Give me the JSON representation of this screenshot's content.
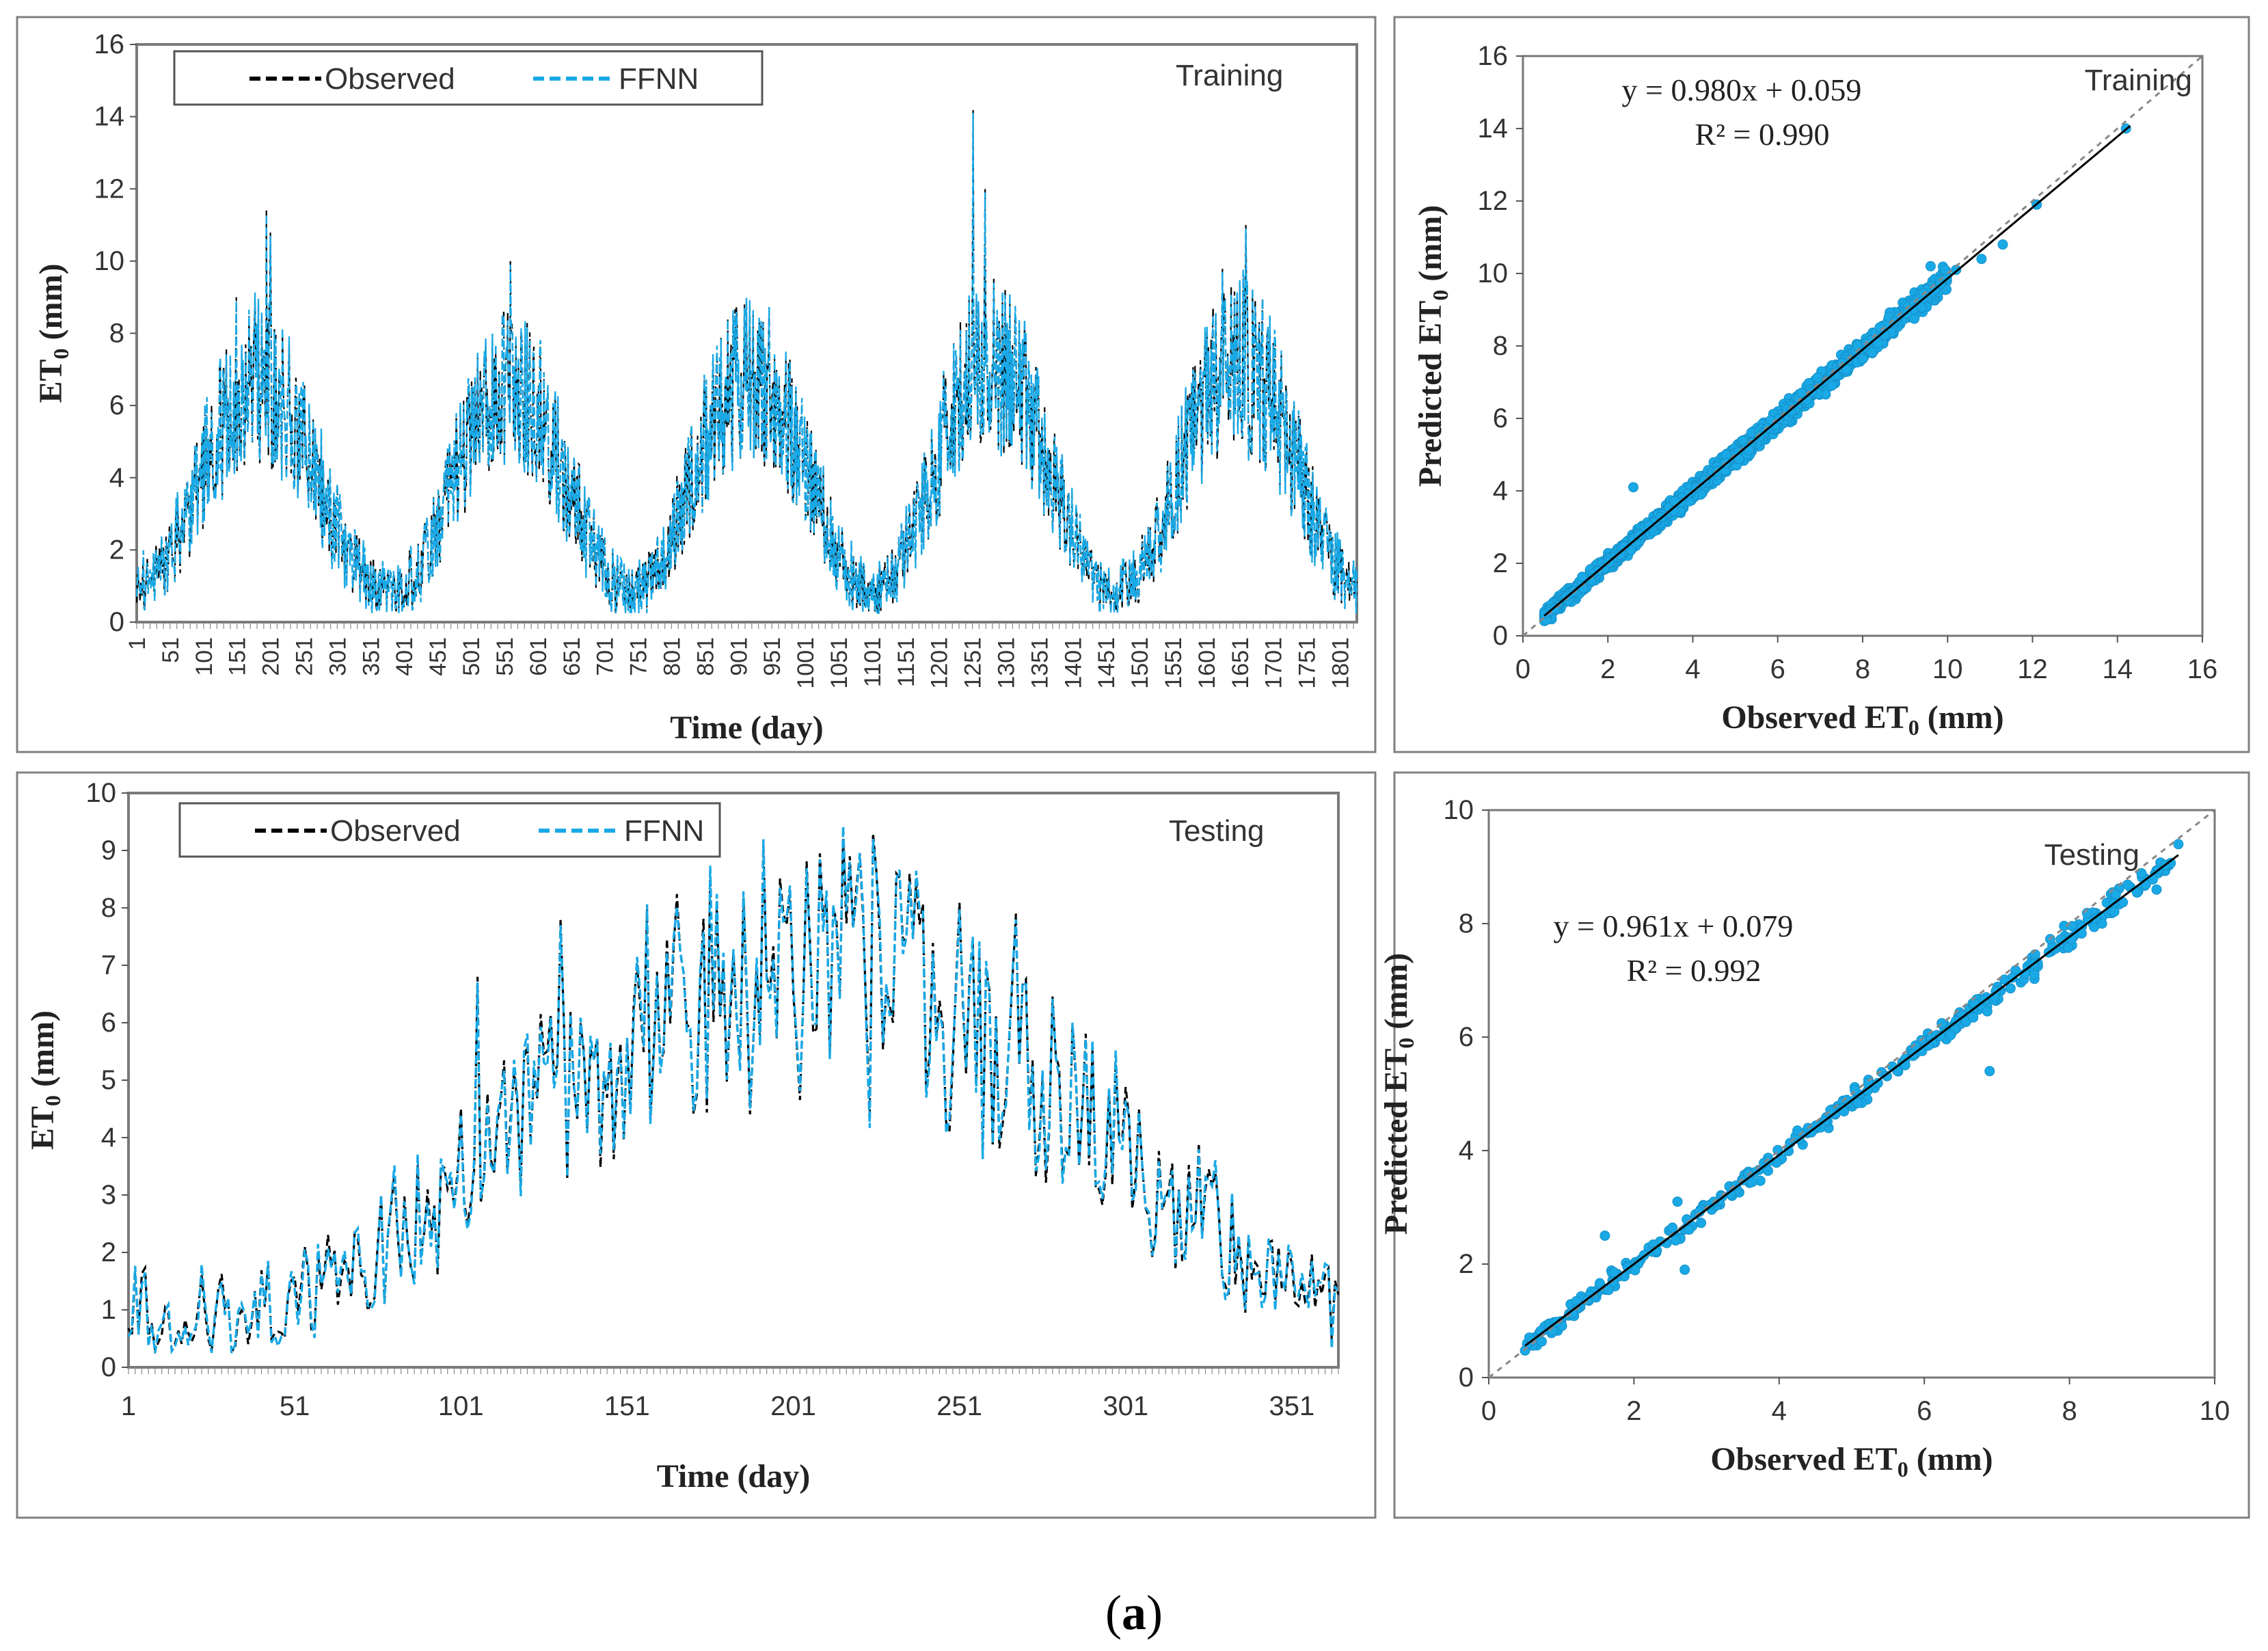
{
  "colors": {
    "observed": "#000000",
    "predicted": "#19a9e6",
    "frame": "#808080",
    "axis": "#555555",
    "fit_line": "#000000",
    "one_to_one": "#888888"
  },
  "caption": {
    "open": "(",
    "letter": "a",
    "close": ")"
  },
  "legend": {
    "observed": "Observed",
    "predicted": "FFNN"
  },
  "chart_data": [
    {
      "id": "training-timeseries",
      "type": "line",
      "title": "Training",
      "xlabel": "Time (day)",
      "ylabel_main": "ET",
      "ylabel_sub": "0",
      "ylabel_unit": " (mm)",
      "ylim": [
        0,
        16
      ],
      "yticks": [
        "0",
        "2",
        "4",
        "6",
        "8",
        "10",
        "12",
        "14",
        "16"
      ],
      "xlim": [
        1,
        1826
      ],
      "xticks": [
        "1",
        "51",
        "101",
        "151",
        "201",
        "251",
        "301",
        "351",
        "401",
        "451",
        "501",
        "551",
        "601",
        "651",
        "701",
        "751",
        "801",
        "851",
        "901",
        "951",
        "1001",
        "1051",
        "1101",
        "1151",
        "1201",
        "1251",
        "1301",
        "1351",
        "1401",
        "1451",
        "1501",
        "1551",
        "1601",
        "1651",
        "1701",
        "1751",
        "1801"
      ],
      "seasonal_model": {
        "years": [
          {
            "peak_day": 185,
            "peak": 6.6,
            "min": 1.0
          },
          {
            "peak_day": 560,
            "peak": 6.4,
            "min": 0.8
          },
          {
            "peak_day": 920,
            "peak": 6.8,
            "min": 0.8
          },
          {
            "peak_day": 1280,
            "peak": 7.2,
            "min": 0.8
          },
          {
            "peak_day": 1650,
            "peak": 7.2,
            "min": 0.9
          }
        ],
        "spikes": [
          {
            "day": 195,
            "value": 11.4
          },
          {
            "day": 201,
            "value": 10.8
          },
          {
            "day": 150,
            "value": 9.0
          },
          {
            "day": 560,
            "value": 10.0
          },
          {
            "day": 910,
            "value": 8.8
          },
          {
            "day": 1252,
            "value": 14.2
          },
          {
            "day": 1270,
            "value": 12.0
          },
          {
            "day": 1660,
            "value": 11.0
          },
          {
            "day": 1625,
            "value": 9.8
          }
        ]
      },
      "series": [
        {
          "name": "Observed"
        },
        {
          "name": "FFNN"
        }
      ]
    },
    {
      "id": "training-scatter",
      "type": "scatter",
      "title": "Training",
      "xlabel_main": "Observed ET",
      "xlabel_sub": "0",
      "xlabel_unit": " (mm)",
      "ylabel_main": "Predicted ET",
      "ylabel_sub": "0",
      "ylabel_unit": " (mm)",
      "xlim": [
        0,
        16
      ],
      "ylim": [
        0,
        16
      ],
      "xticks": [
        "0",
        "2",
        "4",
        "6",
        "8",
        "10",
        "12",
        "14",
        "16"
      ],
      "yticks": [
        "0",
        "2",
        "4",
        "6",
        "8",
        "10",
        "12",
        "14",
        "16"
      ],
      "equation": "y = 0.980x + 0.059",
      "r2": "R² = 0.990",
      "fit": {
        "slope": 0.98,
        "intercept": 0.059,
        "x_range": [
          0.5,
          14.3
        ]
      },
      "one_to_one": [
        0,
        16
      ],
      "scatter_model": {
        "n": 1826,
        "x_range": [
          0.5,
          10.0
        ],
        "noise": 0.25
      },
      "outliers": [
        [
          2.6,
          4.1
        ],
        [
          10.2,
          10.1
        ],
        [
          11.3,
          10.8
        ],
        [
          12.1,
          11.9
        ],
        [
          14.2,
          14.0
        ],
        [
          9.6,
          10.2
        ],
        [
          10.8,
          10.4
        ]
      ]
    },
    {
      "id": "testing-timeseries",
      "type": "line",
      "title": "Testing",
      "xlabel": "Time (day)",
      "ylabel_main": "ET",
      "ylabel_sub": "0",
      "ylabel_unit": " (mm)",
      "ylim": [
        0,
        10
      ],
      "yticks": [
        "0",
        "1",
        "2",
        "3",
        "4",
        "5",
        "6",
        "7",
        "8",
        "9",
        "10"
      ],
      "xlim": [
        1,
        365
      ],
      "xticks": [
        "1",
        "51",
        "101",
        "151",
        "201",
        "251",
        "301",
        "351"
      ],
      "seasonal_model": {
        "years": [
          {
            "peak_day": 205,
            "peak": 6.9,
            "min": 0.9
          }
        ],
        "spikes": [
          {
            "day": 225,
            "value": 9.3
          },
          {
            "day": 218,
            "value": 8.9
          },
          {
            "day": 131,
            "value": 7.8
          },
          {
            "day": 268,
            "value": 7.9
          },
          {
            "day": 232,
            "value": 8.6
          },
          {
            "day": 106,
            "value": 6.8
          },
          {
            "day": 323,
            "value": 3.9
          }
        ]
      },
      "series": [
        {
          "name": "Observed"
        },
        {
          "name": "FFNN"
        }
      ]
    },
    {
      "id": "testing-scatter",
      "type": "scatter",
      "title": "Testing",
      "xlabel_main": "Observed ET",
      "xlabel_sub": "0",
      "xlabel_unit": " (mm)",
      "ylabel_main": "Predicted ET",
      "ylabel_sub": "0",
      "ylabel_unit": " (mm)",
      "xlim": [
        0,
        10
      ],
      "ylim": [
        0,
        10
      ],
      "xticks": [
        "0",
        "2",
        "4",
        "6",
        "8",
        "10"
      ],
      "yticks": [
        "0",
        "2",
        "4",
        "6",
        "8",
        "10"
      ],
      "equation": "y = 0.961x + 0.079",
      "r2": "R² = 0.992",
      "fit": {
        "slope": 0.961,
        "intercept": 0.079,
        "x_range": [
          0.5,
          9.5
        ]
      },
      "one_to_one": [
        0,
        10
      ],
      "scatter_model": {
        "n": 365,
        "x_range": [
          0.5,
          9.4
        ],
        "noise": 0.18
      },
      "outliers": [
        [
          6.9,
          5.4
        ],
        [
          1.6,
          2.5
        ],
        [
          2.7,
          1.9
        ],
        [
          2.6,
          3.1
        ],
        [
          9.5,
          9.4
        ],
        [
          9.2,
          8.6
        ]
      ]
    }
  ]
}
